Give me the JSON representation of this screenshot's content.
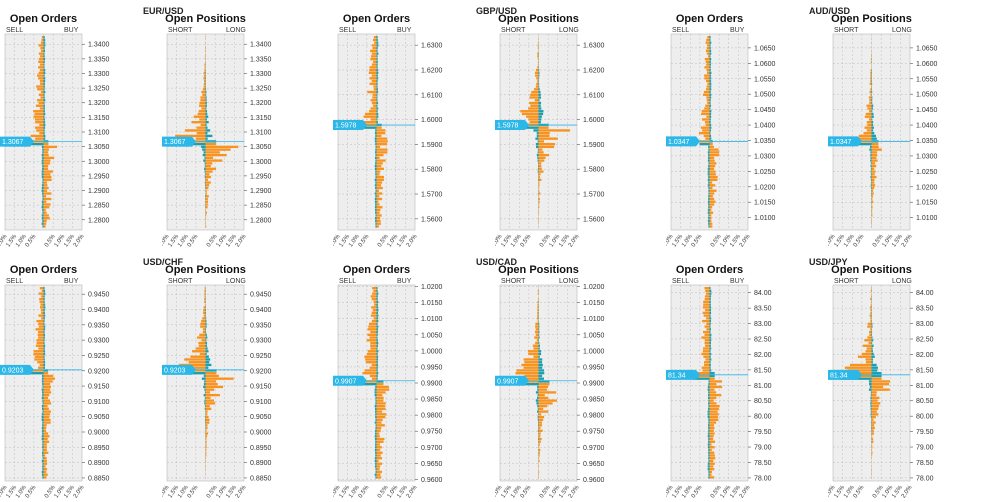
{
  "colors": {
    "orange": "#f7931e",
    "teal": "#1a9fb0",
    "current": "#2bb7e8",
    "gridBg": "#eeeeee",
    "grid": "#bcbcbc"
  },
  "xticks": [
    "2.0%",
    "1.5%",
    "1.0%",
    "0.5%",
    "0.5%",
    "1.0%",
    "1.5%",
    "2.0%"
  ],
  "chart_data": [
    {
      "pair": "EUR/USD",
      "current": 1.3067,
      "current_label": "1.3067",
      "ylim": [
        1.2765,
        1.3435
      ],
      "ticks": [
        "1.2800",
        "1.2850",
        "1.2900",
        "1.2950",
        "1.3000",
        "1.3050",
        "1.3100",
        "1.3150",
        "1.3200",
        "1.3250",
        "1.3300",
        "1.3350",
        "1.3400"
      ],
      "orders": {
        "type": "bar",
        "title": "Open Orders",
        "left_label": "SELL",
        "right_label": "BUY",
        "seed": 11,
        "amp": 0.55,
        "peak": 0.85
      },
      "positions": {
        "type": "bar",
        "title": "Open Positions",
        "left_label": "SHORT",
        "right_label": "LONG",
        "seed": 12,
        "amp": 0.7,
        "peak": 1.85
      }
    },
    {
      "pair": "GBP/USD",
      "current": 1.5978,
      "current_label": "1.5978",
      "ylim": [
        1.5555,
        1.6345
      ],
      "ticks": [
        "1.5600",
        "1.5700",
        "1.5800",
        "1.5900",
        "1.6000",
        "1.6100",
        "1.6200",
        "1.6300"
      ],
      "orders": {
        "type": "bar",
        "title": "Open Orders",
        "left_label": "SELL",
        "right_label": "BUY",
        "seed": 21,
        "amp": 0.55,
        "peak": 0.9
      },
      "positions": {
        "type": "bar",
        "title": "Open Positions",
        "left_label": "SHORT",
        "right_label": "LONG",
        "seed": 22,
        "amp": 0.8,
        "peak": 1.75
      }
    },
    {
      "pair": "AUD/USD",
      "current": 1.0347,
      "current_label": "1.0347",
      "ylim": [
        1.006,
        1.0695
      ],
      "ticks": [
        "1.0100",
        "1.0150",
        "1.0200",
        "1.0250",
        "1.0300",
        "1.0350",
        "1.0400",
        "1.0450",
        "1.0500",
        "1.0550",
        "1.0600",
        "1.0650"
      ],
      "orders": {
        "type": "bar",
        "title": "Open Orders",
        "left_label": "SELL",
        "right_label": "BUY",
        "seed": 31,
        "amp": 0.45,
        "peak": 0.55
      },
      "positions": {
        "type": "bar",
        "title": "Open Positions",
        "left_label": "SHORT",
        "right_label": "LONG",
        "seed": 32,
        "amp": 0.7,
        "peak": 1.2
      }
    },
    {
      "pair": "USD/CHF",
      "current": 0.9203,
      "current_label": "0.9203",
      "ylim": [
        0.884,
        0.948
      ],
      "ticks": [
        "0.8850",
        "0.8900",
        "0.8950",
        "0.9000",
        "0.9050",
        "0.9100",
        "0.9150",
        "0.9200",
        "0.9250",
        "0.9300",
        "0.9350",
        "0.9400",
        "0.9450"
      ],
      "orders": {
        "type": "bar",
        "title": "Open Orders",
        "left_label": "SELL",
        "right_label": "BUY",
        "seed": 41,
        "amp": 0.5,
        "peak": 0.8
      },
      "positions": {
        "type": "bar",
        "title": "Open Positions",
        "left_label": "SHORT",
        "right_label": "LONG",
        "seed": 42,
        "amp": 0.7,
        "peak": 1.9
      }
    },
    {
      "pair": "USD/CAD",
      "current": 0.9907,
      "current_label": "0.9907",
      "ylim": [
        0.9595,
        1.0205
      ],
      "ticks": [
        "0.9600",
        "0.9650",
        "0.9700",
        "0.9750",
        "0.9800",
        "0.9850",
        "0.9900",
        "0.9950",
        "1.0000",
        "1.0050",
        "1.0100",
        "1.0150",
        "1.0200"
      ],
      "orders": {
        "type": "bar",
        "title": "Open Orders",
        "left_label": "SELL",
        "right_label": "BUY",
        "seed": 51,
        "amp": 0.6,
        "peak": 1.2
      },
      "positions": {
        "type": "bar",
        "title": "Open Positions",
        "left_label": "SHORT",
        "right_label": "LONG",
        "seed": 52,
        "amp": 0.8,
        "peak": 1.9
      }
    },
    {
      "pair": "USD/JPY",
      "current": 81.34,
      "current_label": "81.34",
      "ylim": [
        77.9,
        84.25
      ],
      "ticks": [
        "78.00",
        "78.50",
        "79.00",
        "79.50",
        "80.00",
        "80.50",
        "81.00",
        "81.50",
        "82.00",
        "82.50",
        "83.00",
        "83.50",
        "84.00"
      ],
      "orders": {
        "type": "bar",
        "title": "Open Orders",
        "left_label": "SELL",
        "right_label": "BUY",
        "seed": 61,
        "amp": 0.55,
        "peak": 0.9
      },
      "positions": {
        "type": "bar",
        "title": "Open Positions",
        "left_label": "SHORT",
        "right_label": "LONG",
        "seed": 62,
        "amp": 0.7,
        "peak": 1.75
      }
    }
  ]
}
